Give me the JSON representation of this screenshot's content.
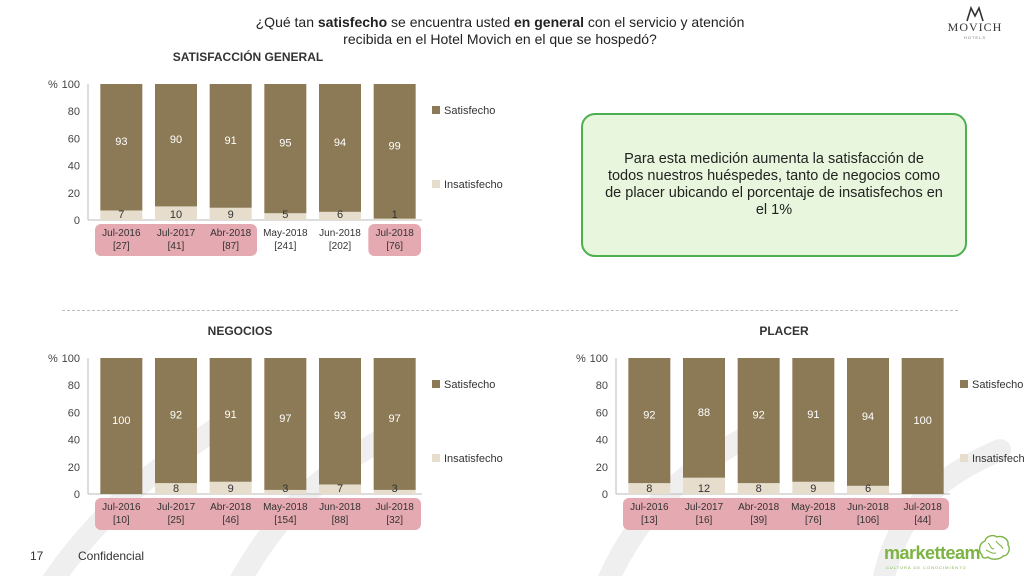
{
  "header": {
    "question_pre": "¿Qué tan ",
    "question_b1": "satisfecho",
    "question_mid": " se encuentra usted ",
    "question_b2": "en general",
    "question_post": " con el servicio y atención recibida en el Hotel Movich en el que se hospedó?",
    "logo_text": "MOVICH",
    "logo_sub": "HOTELS"
  },
  "note": {
    "text": "Para esta medición aumenta la satisfacción de todos nuestros huéspedes, tanto de negocios como de placer ubicando el porcentaje de insatisfechos en el 1%"
  },
  "footer": {
    "page": "17",
    "label": "Confidencial",
    "brand": "marketteam",
    "brand_sub": "CULTURA DE CONOCIMIENTO"
  },
  "colors": {
    "satisfecho": "#8b7a55",
    "insatisfecho": "#e6ddcc",
    "label_box": "#e5a9b1"
  },
  "chart_data": [
    {
      "type": "bar",
      "stacked": true,
      "title": "SATISFACCIÓN GENERAL",
      "ylabel": "%",
      "ylim": [
        0,
        100
      ],
      "yticks": [
        "0",
        "20",
        "40",
        "60",
        "80",
        "100"
      ],
      "categories": [
        "Jul-2016",
        "Jul-2017",
        "Abr-2018",
        "May-2018",
        "Jun-2018",
        "Jul-2018"
      ],
      "n_labels": [
        "[27]",
        "[41]",
        "[87]",
        "[241]",
        "[202]",
        "[76]"
      ],
      "highlighted_categories": [
        0,
        1,
        2,
        5
      ],
      "legend_position": "right",
      "series": [
        {
          "name": "Insatisfecho",
          "values": [
            7,
            10,
            9,
            5,
            6,
            1
          ]
        },
        {
          "name": "Satisfecho",
          "values": [
            93,
            90,
            91,
            95,
            94,
            99
          ]
        }
      ]
    },
    {
      "type": "bar",
      "stacked": true,
      "title": "NEGOCIOS",
      "ylabel": "%",
      "ylim": [
        0,
        100
      ],
      "yticks": [
        "0",
        "20",
        "40",
        "60",
        "80",
        "100"
      ],
      "categories": [
        "Jul-2016",
        "Jul-2017",
        "Abr-2018",
        "May-2018",
        "Jun-2018",
        "Jul-2018"
      ],
      "n_labels": [
        "[10]",
        "[25]",
        "[46]",
        "[154]",
        "[88]",
        "[32]"
      ],
      "highlighted_categories": [
        0,
        1,
        2,
        3,
        4,
        5
      ],
      "legend_position": "right",
      "series": [
        {
          "name": "Insatisfecho",
          "values": [
            0,
            8,
            9,
            3,
            7,
            3
          ]
        },
        {
          "name": "Satisfecho",
          "values": [
            100,
            92,
            91,
            97,
            93,
            97
          ]
        }
      ]
    },
    {
      "type": "bar",
      "stacked": true,
      "title": "PLACER",
      "ylabel": "%",
      "ylim": [
        0,
        100
      ],
      "yticks": [
        "0",
        "20",
        "40",
        "60",
        "80",
        "100"
      ],
      "categories": [
        "Jul-2016",
        "Jul-2017",
        "Abr-2018",
        "May-2018",
        "Jun-2018",
        "Jul-2018"
      ],
      "n_labels": [
        "[13]",
        "[16]",
        "[39]",
        "[76]",
        "[106]",
        "[44]"
      ],
      "highlighted_categories": [
        0,
        1,
        2,
        3,
        4,
        5
      ],
      "legend_position": "right",
      "series": [
        {
          "name": "Insatisfecho",
          "values": [
            8,
            12,
            8,
            9,
            6,
            0
          ]
        },
        {
          "name": "Satisfecho",
          "values": [
            92,
            88,
            92,
            91,
            94,
            100
          ]
        }
      ]
    }
  ]
}
